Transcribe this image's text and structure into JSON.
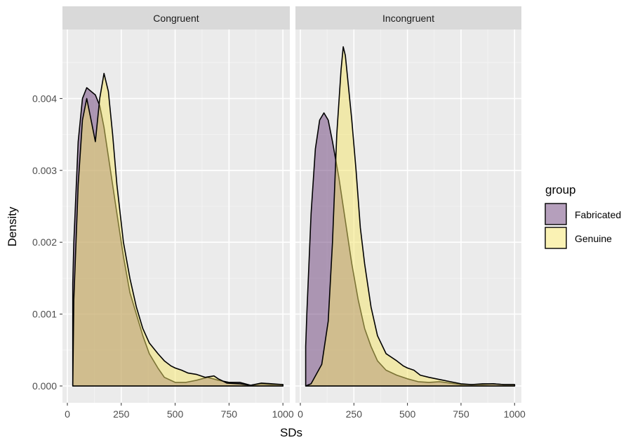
{
  "chart_data": {
    "type": "area",
    "facet_variable": "condition",
    "facets": [
      "Congruent",
      "Incongruent"
    ],
    "xlabel": "SDs",
    "ylabel": "Density",
    "xlim": [
      0,
      1000
    ],
    "ylim": [
      0,
      0.0046
    ],
    "x_ticks": [
      0,
      250,
      500,
      750,
      1000
    ],
    "y_ticks": [
      0.0,
      0.001,
      0.002,
      0.003,
      0.004
    ],
    "y_tick_labels": [
      "0.000",
      "0.001",
      "0.002",
      "0.003",
      "0.004"
    ],
    "grid": true,
    "legend": {
      "title": "group",
      "position": "right",
      "entries": [
        "Fabricated",
        "Genuine"
      ]
    },
    "colors": {
      "Fabricated": "#6b3f7a",
      "Genuine": "#f5e66a",
      "panel_bg": "#ebebeb",
      "strip_bg": "#d9d9d9"
    },
    "series": [
      {
        "name": "Fabricated",
        "panels": [
          {
            "facet": "Congruent",
            "x": [
              25,
              30,
              50,
              70,
              90,
              110,
              130,
              150,
              170,
              200,
              230,
              260,
              290,
              320,
              350,
              380,
              420,
              450,
              500,
              550,
              600,
              650,
              700,
              750,
              800,
              850,
              900,
              950,
              1000
            ],
            "y": [
              0.00142,
              0.002,
              0.0034,
              0.004,
              0.00415,
              0.0041,
              0.00405,
              0.0039,
              0.0036,
              0.003,
              0.0024,
              0.0018,
              0.0013,
              0.001,
              0.0007,
              0.00045,
              0.00025,
              0.00012,
              5e-05,
              5e-05,
              8e-05,
              0.00012,
              8e-05,
              5e-05,
              5e-05,
              1e-05,
              3e-05,
              2e-05,
              2e-05
            ]
          },
          {
            "facet": "Incongruent",
            "x": [
              25,
              30,
              50,
              70,
              90,
              110,
              130,
              150,
              180,
              210,
              240,
              270,
              300,
              330,
              360,
              400,
              450,
              500,
              550,
              600,
              650,
              700,
              750,
              800,
              850,
              900,
              950,
              1000
            ],
            "y": [
              0.00055,
              0.001,
              0.0024,
              0.0033,
              0.0037,
              0.0038,
              0.0037,
              0.0034,
              0.0029,
              0.0023,
              0.0017,
              0.0012,
              0.0008,
              0.00055,
              0.00035,
              0.00022,
              0.00015,
              0.0001,
              6e-05,
              5e-05,
              6e-05,
              4e-05,
              2e-05,
              2e-05,
              2e-05,
              3e-05,
              2e-05,
              2e-05
            ]
          }
        ]
      },
      {
        "name": "Genuine",
        "panels": [
          {
            "facet": "Congruent",
            "x": [
              25,
              30,
              50,
              70,
              90,
              110,
              130,
              150,
              170,
              190,
              210,
              230,
              260,
              290,
              320,
              350,
              380,
              420,
              450,
              480,
              500,
              530,
              560,
              600,
              640,
              680,
              700,
              740,
              800,
              850,
              900,
              950,
              1000
            ],
            "y": [
              0.0,
              0.0012,
              0.0028,
              0.0037,
              0.004,
              0.0037,
              0.0034,
              0.004,
              0.00435,
              0.0041,
              0.0035,
              0.0028,
              0.002,
              0.0015,
              0.0011,
              0.0008,
              0.0006,
              0.00045,
              0.00035,
              0.00028,
              0.00025,
              0.00022,
              0.00018,
              0.00016,
              0.00012,
              0.00014,
              0.0001,
              4e-05,
              3e-05,
              1e-05,
              4e-05,
              3e-05,
              2e-05
            ]
          },
          {
            "facet": "Incongruent",
            "x": [
              25,
              50,
              100,
              130,
              150,
              170,
              190,
              200,
              210,
              220,
              240,
              260,
              280,
              300,
              330,
              360,
              400,
              450,
              480,
              500,
              530,
              560,
              600,
              650,
              700,
              750,
              800,
              850,
              900,
              950,
              1000
            ],
            "y": [
              0.0,
              3e-05,
              0.0003,
              0.0009,
              0.002,
              0.0035,
              0.0044,
              0.00472,
              0.0046,
              0.0043,
              0.0037,
              0.003,
              0.0022,
              0.0017,
              0.0011,
              0.0007,
              0.00045,
              0.00035,
              0.00028,
              0.00025,
              0.00022,
              0.00015,
              0.00012,
              9e-05,
              6e-05,
              3e-05,
              2e-05,
              3e-05,
              3e-05,
              2e-05,
              2e-05
            ]
          }
        ]
      }
    ]
  }
}
